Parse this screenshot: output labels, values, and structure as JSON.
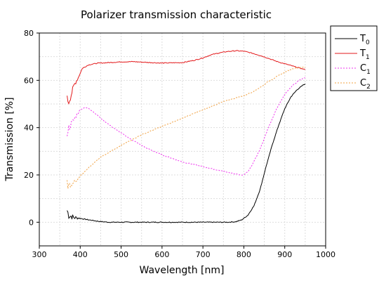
{
  "chart_data": {
    "type": "line",
    "title": "Polarizer transmission characteristic",
    "xlabel": "Wavelength [nm]",
    "ylabel": "Transmission [%]",
    "xlim": [
      300,
      1000
    ],
    "ylim": [
      -10,
      80
    ],
    "xticks": [
      300,
      400,
      500,
      600,
      700,
      800,
      900,
      1000
    ],
    "yticks": [
      0,
      20,
      40,
      60,
      80
    ],
    "grid": true,
    "legend_position": "outside-right-top",
    "series": [
      {
        "name": "T",
        "subscript": "0",
        "color": "#000000",
        "dash": "solid",
        "noise": true,
        "x": [
          368,
          372,
          378,
          385,
          395,
          410,
          425,
          440,
          455,
          470,
          500,
          600,
          700,
          760,
          780,
          795,
          810,
          825,
          840,
          855,
          870,
          885,
          900,
          915,
          930,
          945,
          950
        ],
        "y": [
          5,
          3,
          2.5,
          2,
          1.8,
          1.3,
          0.9,
          0.5,
          0.2,
          0,
          0,
          0,
          0,
          0,
          0.2,
          1,
          3,
          7,
          14,
          24,
          33,
          41,
          48,
          53,
          56,
          58,
          58.5
        ]
      },
      {
        "name": "T",
        "subscript": "1",
        "color": "#e31a1c",
        "dash": "solid",
        "noise": true,
        "x": [
          368,
          372,
          378,
          385,
          395,
          405,
          420,
          440,
          470,
          500,
          530,
          560,
          600,
          650,
          680,
          700,
          720,
          740,
          760,
          780,
          800,
          820,
          840,
          860,
          880,
          900,
          920,
          940,
          950
        ],
        "y": [
          52,
          51,
          54,
          58,
          61,
          65,
          66.5,
          67.2,
          67.5,
          67.8,
          67.9,
          67.6,
          67.3,
          67.5,
          68.5,
          69.5,
          70.8,
          71.6,
          72.2,
          72.5,
          72.3,
          71.5,
          70.5,
          69.3,
          68,
          67,
          66,
          65,
          64.5
        ]
      },
      {
        "name": "C",
        "subscript": "1",
        "color": "#ee33ee",
        "dash": "2,2",
        "noise": true,
        "x": [
          368,
          372,
          380,
          390,
          400,
          410,
          420,
          430,
          450,
          480,
          520,
          560,
          600,
          650,
          700,
          750,
          790,
          800,
          810,
          820,
          840,
          860,
          880,
          900,
          920,
          940,
          950
        ],
        "y": [
          38,
          40,
          42,
          45,
          47.5,
          48.5,
          48.2,
          47,
          44,
          40,
          35.5,
          31.5,
          28.5,
          25.5,
          23.5,
          21.5,
          20,
          20,
          21.5,
          24,
          31,
          40,
          48,
          54,
          58,
          60.5,
          61
        ]
      },
      {
        "name": "C",
        "subscript": "2",
        "color": "#f0a040",
        "dash": "2,2",
        "noise": true,
        "x": [
          368,
          372,
          380,
          390,
          400,
          420,
          450,
          500,
          550,
          600,
          650,
          700,
          750,
          800,
          820,
          840,
          860,
          880,
          900,
          920,
          940,
          950
        ],
        "y": [
          16,
          15.5,
          16,
          17.5,
          19.5,
          23,
          27.5,
          32.5,
          37,
          40.5,
          44,
          47.5,
          51,
          53.5,
          55,
          57,
          59.5,
          61.5,
          63.5,
          65,
          65.5,
          65.5
        ]
      }
    ]
  }
}
